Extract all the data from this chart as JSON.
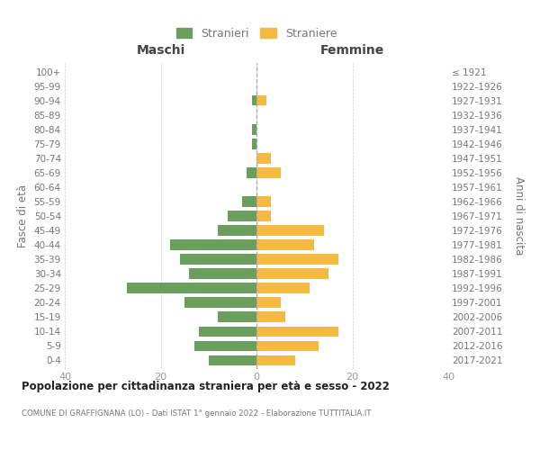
{
  "age_groups": [
    "0-4",
    "5-9",
    "10-14",
    "15-19",
    "20-24",
    "25-29",
    "30-34",
    "35-39",
    "40-44",
    "45-49",
    "50-54",
    "55-59",
    "60-64",
    "65-69",
    "70-74",
    "75-79",
    "80-84",
    "85-89",
    "90-94",
    "95-99",
    "100+"
  ],
  "birth_years": [
    "2017-2021",
    "2012-2016",
    "2007-2011",
    "2002-2006",
    "1997-2001",
    "1992-1996",
    "1987-1991",
    "1982-1986",
    "1977-1981",
    "1972-1976",
    "1967-1971",
    "1962-1966",
    "1957-1961",
    "1952-1956",
    "1947-1951",
    "1942-1946",
    "1937-1941",
    "1932-1936",
    "1927-1931",
    "1922-1926",
    "≤ 1921"
  ],
  "maschi": [
    10,
    13,
    12,
    8,
    15,
    27,
    14,
    16,
    18,
    8,
    6,
    3,
    0,
    2,
    0,
    1,
    1,
    0,
    1,
    0,
    0
  ],
  "femmine": [
    8,
    13,
    17,
    6,
    5,
    11,
    15,
    17,
    12,
    14,
    3,
    3,
    0,
    5,
    3,
    0,
    0,
    0,
    2,
    0,
    0
  ],
  "color_maschi": "#6a9e5e",
  "color_femmine": "#f5b942",
  "title_main": "Popolazione per cittadinanza straniera per età e sesso - 2022",
  "title_sub": "COMUNE DI GRAFFIGNANA (LO) - Dati ISTAT 1° gennaio 2022 - Elaborazione TUTTITALIA.IT",
  "ylabel_left": "Fasce di età",
  "ylabel_right": "Anni di nascita",
  "header_maschi": "Maschi",
  "header_femmine": "Femmine",
  "legend_maschi": "Stranieri",
  "legend_femmine": "Straniere",
  "xlim": [
    -40,
    40
  ],
  "xticks": [
    -40,
    -20,
    0,
    20,
    40
  ],
  "xtick_labels": [
    "40",
    "20",
    "0",
    "20",
    "40"
  ],
  "bg_color": "#ffffff",
  "grid_color": "#cccccc",
  "tick_color": "#999999",
  "label_color": "#777777",
  "title_color": "#222222",
  "header_color": "#444444",
  "vline_color": "#aaaaaa",
  "bar_height": 0.72
}
